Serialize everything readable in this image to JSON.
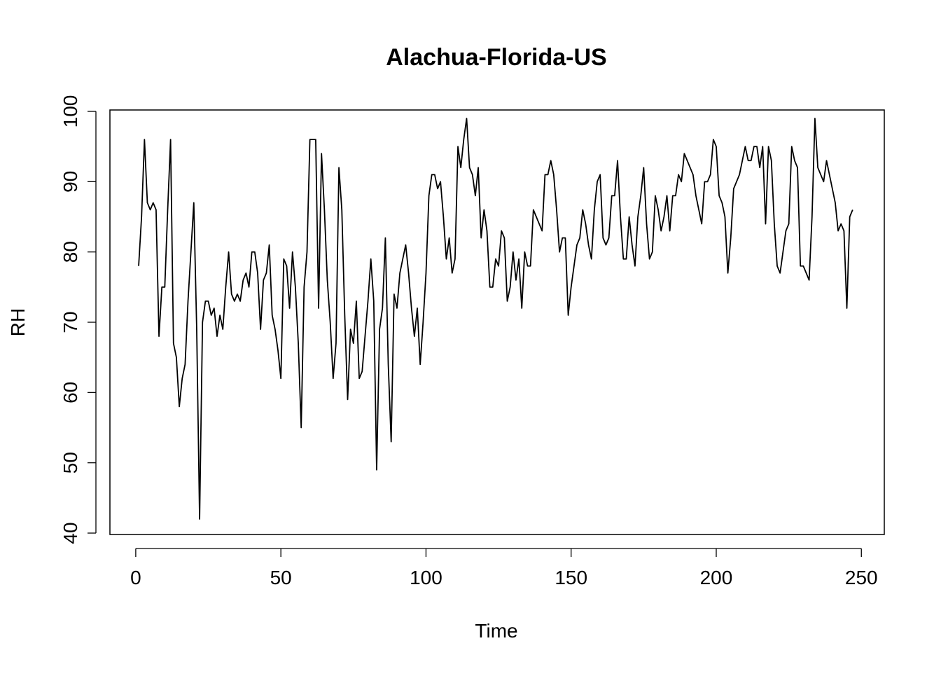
{
  "chart_data": {
    "type": "line",
    "title": "Alachua-Florida-US",
    "xlabel": "Time",
    "ylabel": "RH",
    "xlim": [
      -8.9,
      257.9
    ],
    "ylim": [
      39.8,
      100.2
    ],
    "xticks": [
      0,
      50,
      100,
      150,
      200,
      250
    ],
    "yticks": [
      40,
      50,
      60,
      70,
      80,
      90,
      100
    ],
    "grid": false,
    "line_color": "#000000",
    "series": [
      {
        "name": "RH",
        "x_start": 1,
        "values": [
          78,
          85,
          96,
          87,
          86,
          87,
          86,
          68,
          75,
          75,
          86,
          96,
          67,
          65,
          58,
          62,
          64,
          73,
          80,
          87,
          69,
          42,
          70,
          73,
          73,
          71,
          72,
          68,
          71,
          69,
          75,
          80,
          74,
          73,
          74,
          73,
          76,
          77,
          75,
          80,
          80,
          77,
          69,
          76,
          77,
          81,
          71,
          69,
          66,
          62,
          79,
          78,
          72,
          80,
          75,
          67,
          55,
          75,
          80,
          96,
          96,
          96,
          72,
          94,
          86,
          76,
          70,
          62,
          67,
          92,
          86,
          71,
          59,
          69,
          67,
          73,
          62,
          63,
          68,
          73,
          79,
          73,
          49,
          69,
          72,
          82,
          64,
          53,
          74,
          72,
          77,
          79,
          81,
          77,
          72,
          68,
          72,
          64,
          70,
          77,
          88,
          91,
          91,
          89,
          90,
          85,
          79,
          82,
          77,
          79,
          95,
          92,
          96,
          99,
          92,
          91,
          88,
          92,
          82,
          86,
          83,
          75,
          75,
          79,
          78,
          83,
          82,
          73,
          75,
          80,
          76,
          79,
          72,
          80,
          78,
          78,
          86,
          85,
          84,
          83,
          91,
          91,
          93,
          91,
          86,
          80,
          82,
          82,
          71,
          75,
          78,
          81,
          82,
          86,
          84,
          81,
          79,
          86,
          90,
          91,
          82,
          81,
          82,
          88,
          88,
          93,
          85,
          79,
          79,
          85,
          81,
          78,
          85,
          88,
          92,
          84,
          79,
          80,
          88,
          86,
          83,
          85,
          88,
          83,
          88,
          88,
          91,
          90,
          94,
          93,
          92,
          91,
          88,
          86,
          84,
          90,
          90,
          91,
          96,
          95,
          88,
          87,
          85,
          77,
          82,
          89,
          90,
          91,
          93,
          95,
          93,
          93,
          95,
          95,
          92,
          95,
          84,
          95,
          93,
          84,
          78,
          77,
          80,
          83,
          84,
          95,
          93,
          92,
          78,
          78,
          77,
          76,
          85,
          99,
          92,
          91,
          90,
          93,
          91,
          89,
          87,
          83,
          84,
          83,
          72,
          85,
          86
        ]
      }
    ]
  }
}
